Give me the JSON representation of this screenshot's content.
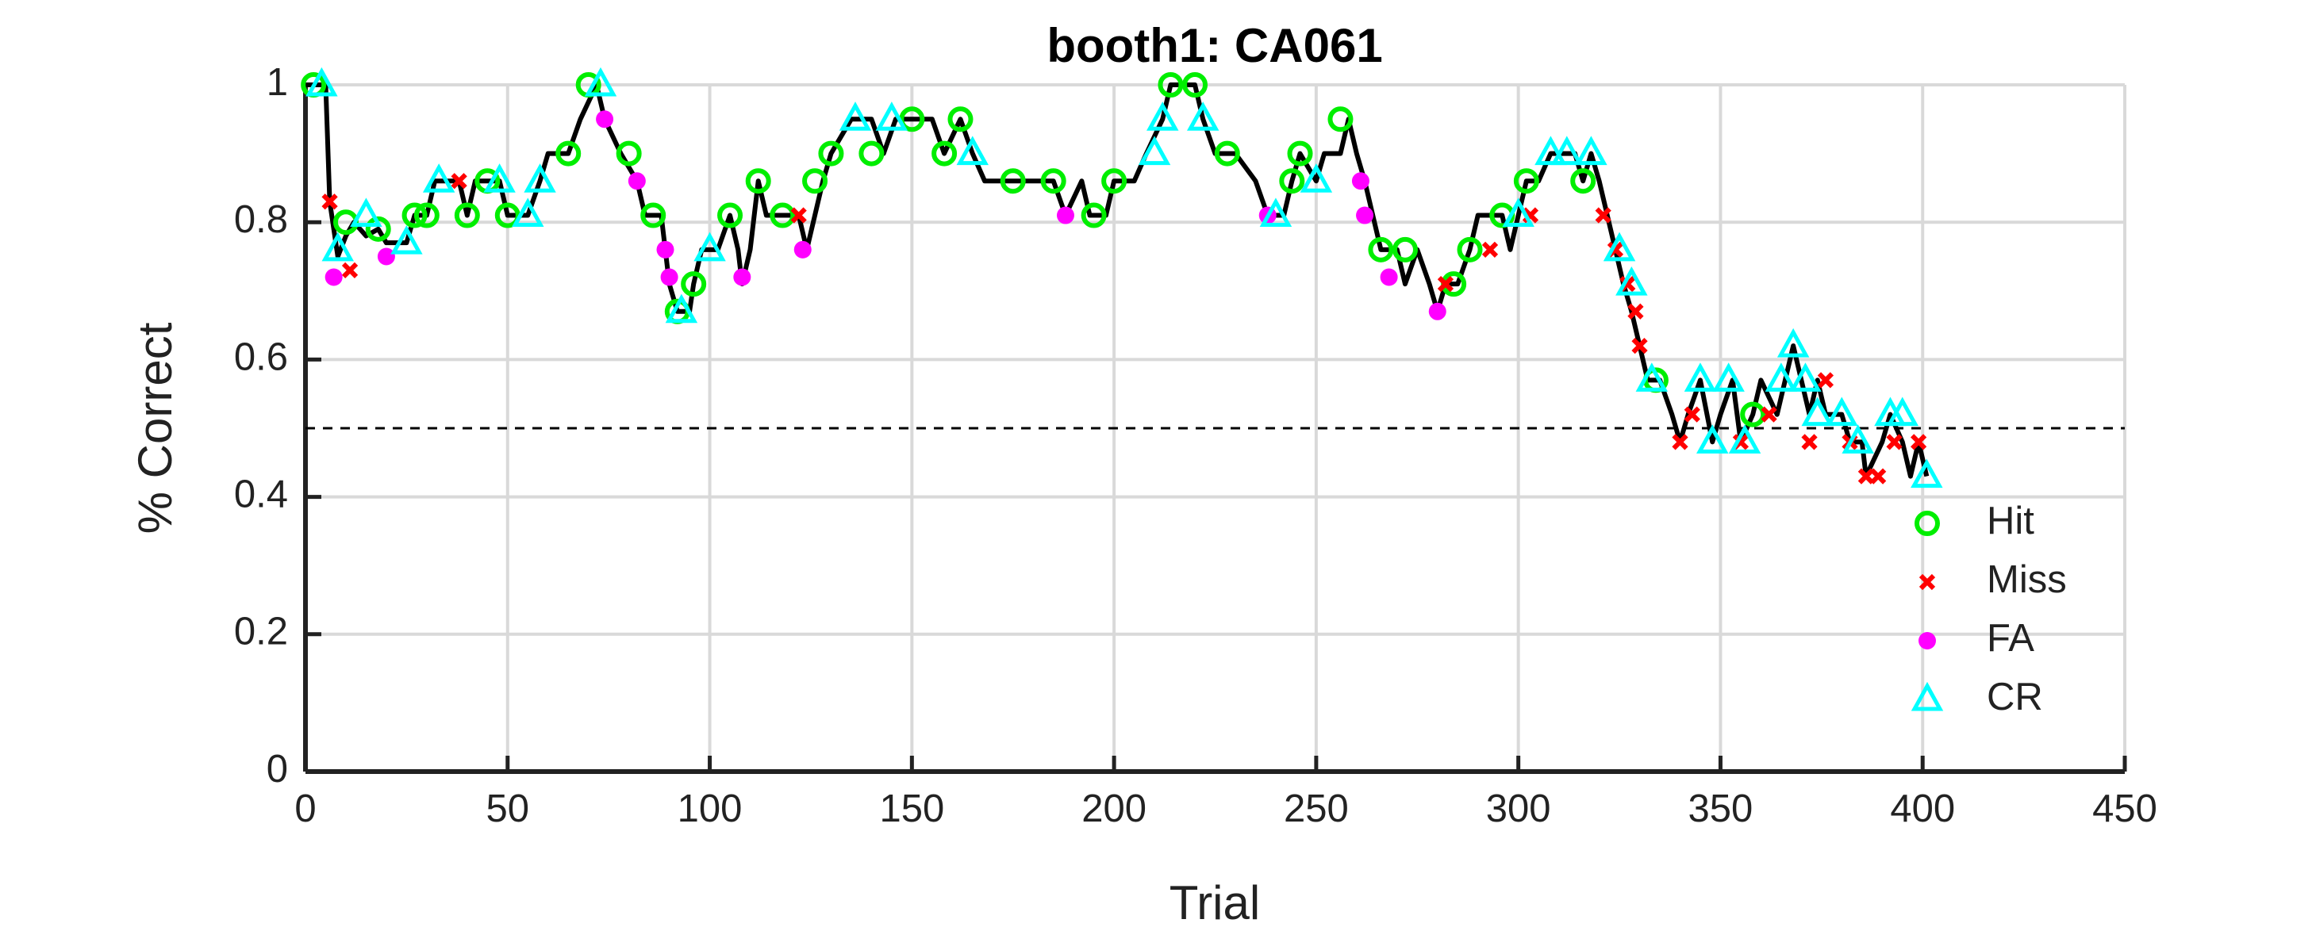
{
  "chart_data": {
    "type": "line",
    "title": "booth1: CA061",
    "xlabel": "Trial",
    "ylabel": "% Correct",
    "xlim": [
      0,
      450
    ],
    "ylim": [
      0,
      1
    ],
    "xticks": [
      0,
      50,
      100,
      150,
      200,
      250,
      300,
      350,
      400,
      450
    ],
    "yticks": [
      0,
      0.2,
      0.4,
      0.6,
      0.8,
      1
    ],
    "grid": true,
    "legend": "lower right",
    "reference_line": 0.5,
    "series": [
      {
        "color": "#000000",
        "marker": "none",
        "x": [
          0,
          5,
          6,
          8,
          10,
          12,
          15,
          18,
          20,
          25,
          27,
          30,
          32,
          38,
          40,
          42,
          48,
          50,
          55,
          58,
          60,
          65,
          68,
          72,
          74,
          78,
          82,
          84,
          88,
          90,
          92,
          95,
          96,
          98,
          102,
          105,
          107,
          108,
          110,
          112,
          114,
          122,
          124,
          126,
          128,
          130,
          135,
          140,
          143,
          146,
          155,
          158,
          162,
          165,
          168,
          185,
          188,
          192,
          194,
          198,
          200,
          205,
          208,
          212,
          214,
          220,
          222,
          225,
          230,
          235,
          238,
          242,
          244,
          246,
          250,
          252,
          256,
          258,
          260,
          262,
          264,
          266,
          270,
          272,
          275,
          278,
          280,
          282,
          285,
          288,
          290,
          296,
          298,
          300,
          302,
          305,
          308,
          314,
          316,
          318,
          320,
          322,
          324,
          326,
          328,
          330,
          332,
          335,
          338,
          340,
          342,
          345,
          348,
          350,
          353,
          355,
          358,
          360,
          364,
          366,
          368,
          370,
          372,
          374,
          376,
          380,
          382,
          385,
          386,
          390,
          392,
          395,
          397,
          399,
          401
        ],
        "values": [
          1,
          1,
          0.83,
          0.75,
          0.78,
          0.8,
          0.78,
          0.79,
          0.77,
          0.77,
          0.81,
          0.81,
          0.86,
          0.86,
          0.81,
          0.86,
          0.86,
          0.81,
          0.81,
          0.86,
          0.9,
          0.9,
          0.95,
          1.0,
          0.95,
          0.9,
          0.86,
          0.81,
          0.81,
          0.71,
          0.67,
          0.67,
          0.71,
          0.76,
          0.76,
          0.81,
          0.76,
          0.71,
          0.76,
          0.86,
          0.81,
          0.81,
          0.76,
          0.81,
          0.86,
          0.9,
          0.95,
          0.95,
          0.9,
          0.95,
          0.95,
          0.9,
          0.95,
          0.9,
          0.86,
          0.86,
          0.81,
          0.86,
          0.81,
          0.81,
          0.86,
          0.86,
          0.9,
          0.95,
          1.0,
          1.0,
          0.95,
          0.9,
          0.9,
          0.86,
          0.81,
          0.81,
          0.86,
          0.9,
          0.86,
          0.9,
          0.9,
          0.95,
          0.9,
          0.86,
          0.81,
          0.76,
          0.76,
          0.71,
          0.76,
          0.71,
          0.67,
          0.71,
          0.71,
          0.76,
          0.81,
          0.81,
          0.76,
          0.81,
          0.86,
          0.86,
          0.9,
          0.9,
          0.86,
          0.9,
          0.86,
          0.81,
          0.76,
          0.71,
          0.67,
          0.62,
          0.57,
          0.57,
          0.52,
          0.48,
          0.52,
          0.57,
          0.48,
          0.52,
          0.57,
          0.48,
          0.52,
          0.57,
          0.52,
          0.57,
          0.62,
          0.57,
          0.52,
          0.57,
          0.52,
          0.52,
          0.48,
          0.48,
          0.43,
          0.48,
          0.52,
          0.48,
          0.43,
          0.48,
          0.43
        ]
      },
      {
        "name": "Hit",
        "color": "#00ee00",
        "marker": "circle",
        "x": [
          2,
          10,
          18,
          27,
          30,
          40,
          45,
          50,
          65,
          70,
          80,
          86,
          92,
          96,
          105,
          112,
          118,
          126,
          130,
          140,
          150,
          158,
          162,
          175,
          185,
          195,
          200,
          214,
          220,
          228,
          244,
          246,
          256,
          266,
          272,
          284,
          288,
          296,
          302,
          316,
          334,
          358
        ],
        "values": [
          1,
          0.8,
          0.79,
          0.81,
          0.81,
          0.81,
          0.86,
          0.81,
          0.9,
          1.0,
          0.9,
          0.81,
          0.67,
          0.71,
          0.81,
          0.86,
          0.81,
          0.86,
          0.9,
          0.9,
          0.95,
          0.9,
          0.95,
          0.86,
          0.86,
          0.81,
          0.86,
          1.0,
          1.0,
          0.9,
          0.86,
          0.9,
          0.95,
          0.76,
          0.76,
          0.71,
          0.76,
          0.81,
          0.86,
          0.86,
          0.57,
          0.52
        ]
      },
      {
        "name": "Miss",
        "color": "#ff0000",
        "marker": "x",
        "x": [
          6,
          11,
          38,
          122,
          282,
          293,
          303,
          321,
          324,
          327,
          329,
          330,
          340,
          343,
          355,
          362,
          372,
          376,
          382,
          386,
          389,
          393,
          399
        ],
        "values": [
          0.83,
          0.73,
          0.86,
          0.81,
          0.71,
          0.76,
          0.81,
          0.81,
          0.76,
          0.71,
          0.67,
          0.62,
          0.48,
          0.52,
          0.48,
          0.52,
          0.48,
          0.57,
          0.48,
          0.43,
          0.43,
          0.48,
          0.48
        ]
      },
      {
        "name": "FA",
        "color": "#ff00ff",
        "marker": "dot",
        "x": [
          7,
          20,
          74,
          82,
          89,
          90,
          108,
          123,
          188,
          238,
          261,
          262,
          268,
          280
        ],
        "values": [
          0.72,
          0.75,
          0.95,
          0.86,
          0.76,
          0.72,
          0.72,
          0.76,
          0.81,
          0.81,
          0.86,
          0.81,
          0.72,
          0.67
        ]
      },
      {
        "name": "CR",
        "color": "#00ffff",
        "marker": "triangle",
        "x": [
          4,
          8,
          15,
          25,
          33,
          48,
          55,
          58,
          73,
          93,
          100,
          136,
          145,
          165,
          210,
          212,
          222,
          240,
          250,
          300,
          308,
          312,
          318,
          325,
          328,
          333,
          345,
          348,
          352,
          356,
          365,
          368,
          371,
          374,
          380,
          384,
          392,
          395,
          401
        ],
        "values": [
          1,
          0.76,
          0.81,
          0.77,
          0.86,
          0.86,
          0.81,
          0.86,
          1.0,
          0.67,
          0.76,
          0.95,
          0.95,
          0.9,
          0.9,
          0.95,
          0.95,
          0.81,
          0.86,
          0.81,
          0.9,
          0.9,
          0.9,
          0.76,
          0.71,
          0.57,
          0.57,
          0.48,
          0.57,
          0.48,
          0.57,
          0.62,
          0.57,
          0.52,
          0.52,
          0.48,
          0.52,
          0.52,
          0.43
        ]
      }
    ]
  }
}
